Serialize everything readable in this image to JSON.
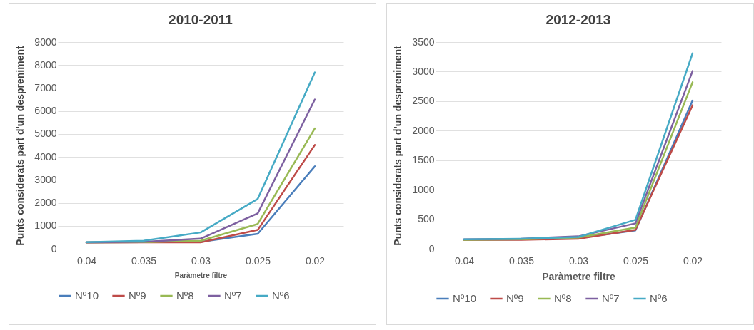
{
  "chart_data": [
    {
      "type": "line",
      "title": "2010-2011",
      "xlabel": "Paràmetre filtre",
      "ylabel": "Punts considerats part d'un despreniment",
      "categories": [
        "0.04",
        "0.035",
        "0.03",
        "0.025",
        "0.02"
      ],
      "ylim": [
        0,
        9000
      ],
      "yticks": [
        0,
        1000,
        2000,
        3000,
        4000,
        5000,
        6000,
        7000,
        8000,
        9000
      ],
      "grid": "y",
      "legend": "bottom",
      "series": [
        {
          "name": "Nº10",
          "color": "#4a7ebb",
          "values": [
            280,
            290,
            300,
            650,
            3590
          ]
        },
        {
          "name": "Nº9",
          "color": "#be4b48",
          "values": [
            270,
            280,
            280,
            820,
            4520
          ]
        },
        {
          "name": "Nº8",
          "color": "#98b954",
          "values": [
            280,
            290,
            350,
            1080,
            5240
          ]
        },
        {
          "name": "Nº7",
          "color": "#7d60a0",
          "values": [
            280,
            300,
            440,
            1540,
            6500
          ]
        },
        {
          "name": "Nº6",
          "color": "#46aac5",
          "values": [
            290,
            350,
            710,
            2170,
            7680
          ]
        }
      ]
    },
    {
      "type": "line",
      "title": "2012-2013",
      "xlabel": "Paràmetre filtre",
      "ylabel": "Punts considerats part d'un despreniment",
      "categories": [
        "0.04",
        "0.035",
        "0.03",
        "0.025",
        "0.02"
      ],
      "ylim": [
        0,
        3500
      ],
      "yticks": [
        0,
        500,
        1000,
        1500,
        2000,
        2500,
        3000,
        3500
      ],
      "grid": "y",
      "legend": "bottom",
      "series": [
        {
          "name": "Nº10",
          "color": "#4a7ebb",
          "values": [
            150,
            160,
            180,
            310,
            2510
          ]
        },
        {
          "name": "Nº9",
          "color": "#be4b48",
          "values": [
            150,
            150,
            170,
            320,
            2430
          ]
        },
        {
          "name": "Nº8",
          "color": "#98b954",
          "values": [
            150,
            160,
            190,
            360,
            2820
          ]
        },
        {
          "name": "Nº7",
          "color": "#7d60a0",
          "values": [
            160,
            170,
            210,
            430,
            3010
          ]
        },
        {
          "name": "Nº6",
          "color": "#46aac5",
          "values": [
            160,
            170,
            200,
            490,
            3310
          ]
        }
      ]
    }
  ]
}
